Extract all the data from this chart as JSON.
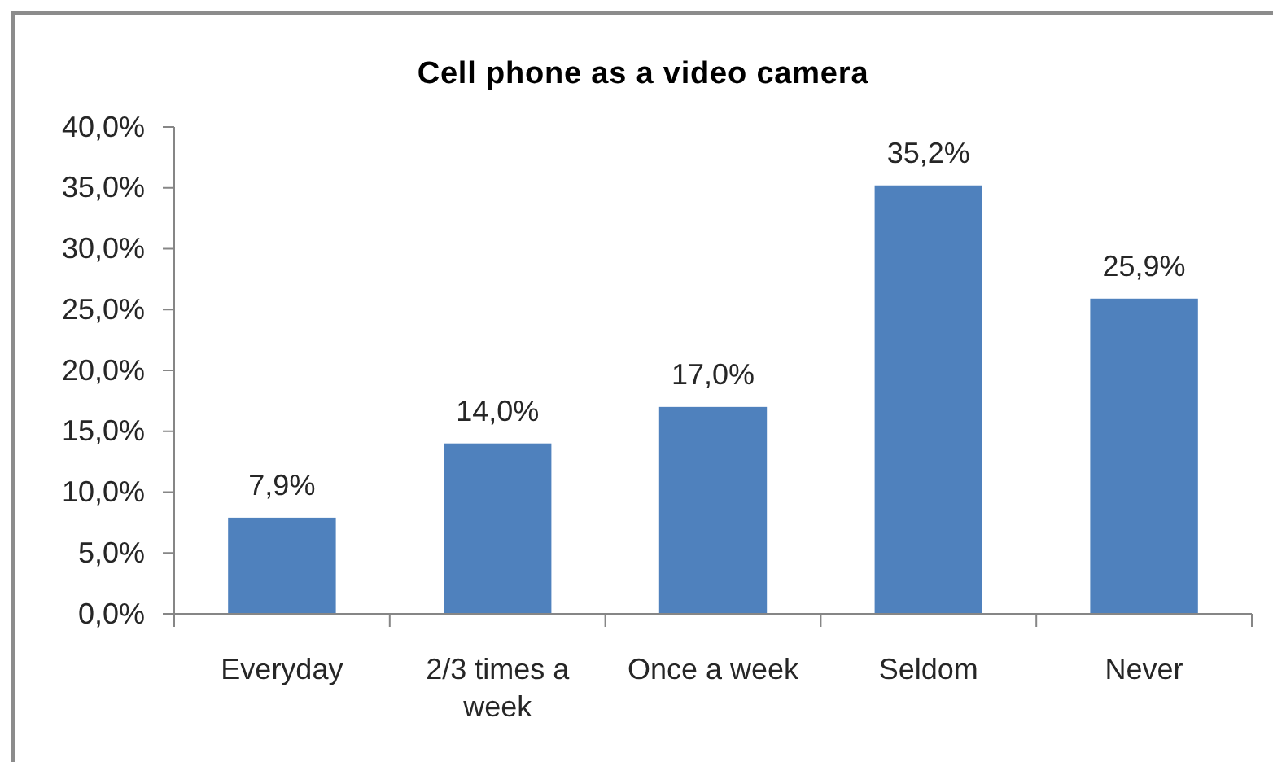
{
  "chart_data": {
    "type": "bar",
    "title": "Cell phone as a video camera",
    "categories": [
      "Everyday",
      "2/3 times a week",
      "Once a week",
      "Seldom",
      "Never"
    ],
    "values": [
      7.9,
      14.0,
      17.0,
      35.2,
      25.9
    ],
    "value_labels": [
      "7,9%",
      "14,0%",
      "17,0%",
      "35,2%",
      "25,9%"
    ],
    "color": "#4f81bd",
    "ylim": [
      0,
      40
    ],
    "yticks": [
      {
        "value": 0,
        "label": "0,0%"
      },
      {
        "value": 5,
        "label": "5,0%"
      },
      {
        "value": 10,
        "label": "10,0%"
      },
      {
        "value": 15,
        "label": "15,0%"
      },
      {
        "value": 20,
        "label": "20,0%"
      },
      {
        "value": 25,
        "label": "25,0%"
      },
      {
        "value": 30,
        "label": "30,0%"
      },
      {
        "value": 35,
        "label": "35,0%"
      },
      {
        "value": 40,
        "label": "40,0%"
      }
    ]
  }
}
